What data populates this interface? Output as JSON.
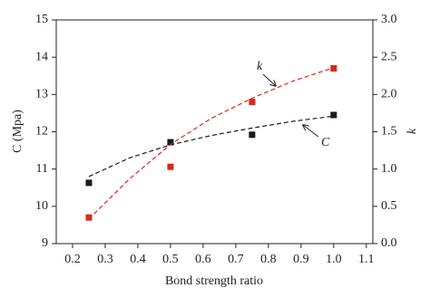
{
  "chart_data": {
    "type": "scatter",
    "xlabel": "Bond strength ratio",
    "ylabel": "C (Mpa)",
    "y2label": "k",
    "x": [
      0.25,
      0.5,
      0.75,
      1.0
    ],
    "fit_x": [
      0.25,
      0.375,
      0.5,
      0.625,
      0.75,
      0.875,
      1.0
    ],
    "series": [
      {
        "name": "C",
        "color": "#1a1a1a",
        "values": [
          10.63,
          11.72,
          11.92,
          12.45
        ],
        "fit": [
          10.8,
          11.3,
          11.65,
          11.9,
          12.1,
          12.28,
          12.42
        ]
      },
      {
        "name": "k",
        "color": "#d42a1e",
        "axis": "y2",
        "values": [
          0.35,
          1.03,
          1.9,
          2.35
        ],
        "fit": [
          0.33,
          0.87,
          1.33,
          1.68,
          1.95,
          2.18,
          2.36
        ]
      }
    ],
    "xlim": [
      0.15,
      1.12
    ],
    "ylim": [
      9,
      15
    ],
    "y2lim": [
      0,
      3
    ],
    "xticks": [
      0.2,
      0.3,
      0.4,
      0.5,
      0.6,
      0.7,
      0.8,
      0.9,
      {
        "value": 1,
        "label": "1.0"
      },
      1.1
    ],
    "yticks": [
      9,
      10,
      11,
      12,
      13,
      14,
      15
    ],
    "y2ticks": [
      {
        "value": 0,
        "label": "0.0"
      },
      0.5,
      {
        "value": 1,
        "label": "1.0"
      },
      1.5,
      {
        "value": 2,
        "label": "2.0"
      },
      2.5,
      {
        "value": 3,
        "label": "3.0"
      }
    ],
    "grid": false
  }
}
